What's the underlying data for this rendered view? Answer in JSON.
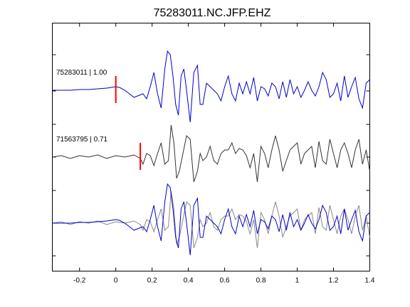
{
  "chart_data": {
    "type": "line",
    "title": "75283011.NC.JFP.EHZ",
    "xlabel": "",
    "ylabel": "",
    "xlim": [
      -0.35,
      1.4
    ],
    "xticks": [
      -0.2,
      0,
      0.2,
      0.4,
      0.6,
      0.8,
      1,
      1.2,
      1.4
    ],
    "xtick_labels": [
      "-0.2",
      "0",
      "0.2",
      "0.4",
      "0.6",
      "0.8",
      "1",
      "1.2",
      "1.4"
    ],
    "grid": false,
    "colors": {
      "trace1": "#0000cc",
      "trace2": "#333333",
      "overlay": "#888888",
      "pick": "#ff0000"
    },
    "traces": [
      {
        "label": "75283011 | 1.00",
        "pick_time": 0.0,
        "color": "#0000cc",
        "x": [
          -0.35,
          -0.3,
          -0.25,
          -0.2,
          -0.15,
          -0.1,
          -0.05,
          0,
          0.02,
          0.05,
          0.08,
          0.1,
          0.12,
          0.15,
          0.17,
          0.19,
          0.21,
          0.23,
          0.25,
          0.27,
          0.285,
          0.3,
          0.315,
          0.33,
          0.345,
          0.36,
          0.375,
          0.39,
          0.41,
          0.43,
          0.45,
          0.465,
          0.48,
          0.5,
          0.52,
          0.54,
          0.56,
          0.58,
          0.6,
          0.62,
          0.64,
          0.66,
          0.68,
          0.7,
          0.72,
          0.74,
          0.76,
          0.78,
          0.8,
          0.82,
          0.84,
          0.86,
          0.88,
          0.9,
          0.92,
          0.94,
          0.96,
          0.98,
          1,
          1.02,
          1.04,
          1.06,
          1.08,
          1.1,
          1.12,
          1.14,
          1.16,
          1.18,
          1.2,
          1.22,
          1.24,
          1.26,
          1.28,
          1.3,
          1.32,
          1.34,
          1.36,
          1.38,
          1.4
        ],
        "y": [
          0,
          0,
          0,
          0.01,
          0.01,
          0.02,
          0.03,
          0.05,
          0.04,
          0,
          -0.06,
          -0.1,
          -0.08,
          -0.05,
          -0.12,
          0.05,
          0.25,
          -0.05,
          -0.25,
          0.3,
          0.55,
          0.5,
          0.2,
          -0.2,
          -0.35,
          0.2,
          0.3,
          0,
          -0.45,
          0.25,
          0.35,
          -0.2,
          -0.2,
          0.1,
          0.05,
          0,
          -0.05,
          -0.15,
          0.05,
          0.2,
          -0.05,
          -0.15,
          0.1,
          -0.05,
          0.12,
          -0.05,
          0.18,
          -0.15,
          0.05,
          0.02,
          -0.08,
          0.1,
          0.05,
          -0.12,
          0.12,
          -0.1,
          0.15,
          -0.05,
          0.05,
          -0.1,
          0,
          0.12,
          0,
          -0.08,
          0.05,
          0.25,
          0.15,
          -0.1,
          -0.05,
          0.1,
          -0.15,
          0.2,
          -0.1,
          0.05,
          0.18,
          -0.12,
          -0.25,
          0.1,
          0.15
        ]
      },
      {
        "label": "71563795 | 0.71",
        "pick_time": 0.135,
        "color": "#333333",
        "x": [
          -0.35,
          -0.3,
          -0.25,
          -0.2,
          -0.15,
          -0.1,
          -0.05,
          0,
          0.05,
          0.1,
          0.135,
          0.15,
          0.17,
          0.19,
          0.21,
          0.23,
          0.25,
          0.27,
          0.29,
          0.305,
          0.32,
          0.335,
          0.35,
          0.37,
          0.39,
          0.41,
          0.43,
          0.45,
          0.465,
          0.48,
          0.5,
          0.52,
          0.54,
          0.56,
          0.58,
          0.6,
          0.62,
          0.64,
          0.66,
          0.68,
          0.7,
          0.72,
          0.74,
          0.76,
          0.78,
          0.8,
          0.82,
          0.84,
          0.86,
          0.88,
          0.9,
          0.92,
          0.94,
          0.96,
          0.98,
          1,
          1.02,
          1.04,
          1.06,
          1.08,
          1.1,
          1.12,
          1.14,
          1.16,
          1.18,
          1.2,
          1.22,
          1.24,
          1.26,
          1.28,
          1.3,
          1.32,
          1.34,
          1.36,
          1.38,
          1.4
        ],
        "y": [
          0,
          0.02,
          -0.02,
          0.02,
          0,
          0.03,
          -0.02,
          0.02,
          0,
          0.03,
          -0.02,
          -0.1,
          0.05,
          0.02,
          -0.12,
          0.05,
          0.2,
          -0.1,
          -0.05,
          0.45,
          0.2,
          -0.3,
          -0.2,
          0.05,
          0.3,
          0.25,
          -0.35,
          -0.2,
          0.05,
          -0.05,
          0,
          0.15,
          -0.05,
          -0.1,
          0.05,
          0.1,
          0.1,
          0.2,
          0.05,
          0.12,
          0.1,
          0.02,
          -0.15,
          0.05,
          -0.35,
          0.15,
          0.05,
          -0.15,
          0.1,
          0.3,
          0.1,
          -0.2,
          -0.05,
          0.1,
          0.15,
          0.2,
          -0.1,
          0.05,
          0.1,
          0.15,
          -0.15,
          0.22,
          -0.05,
          -0.1,
          0.25,
          0.05,
          -0.15,
          0.1,
          0.2,
          0.05,
          -0.15,
          0.1,
          0.25,
          -0.1,
          0.1,
          -0.2
        ]
      }
    ]
  }
}
